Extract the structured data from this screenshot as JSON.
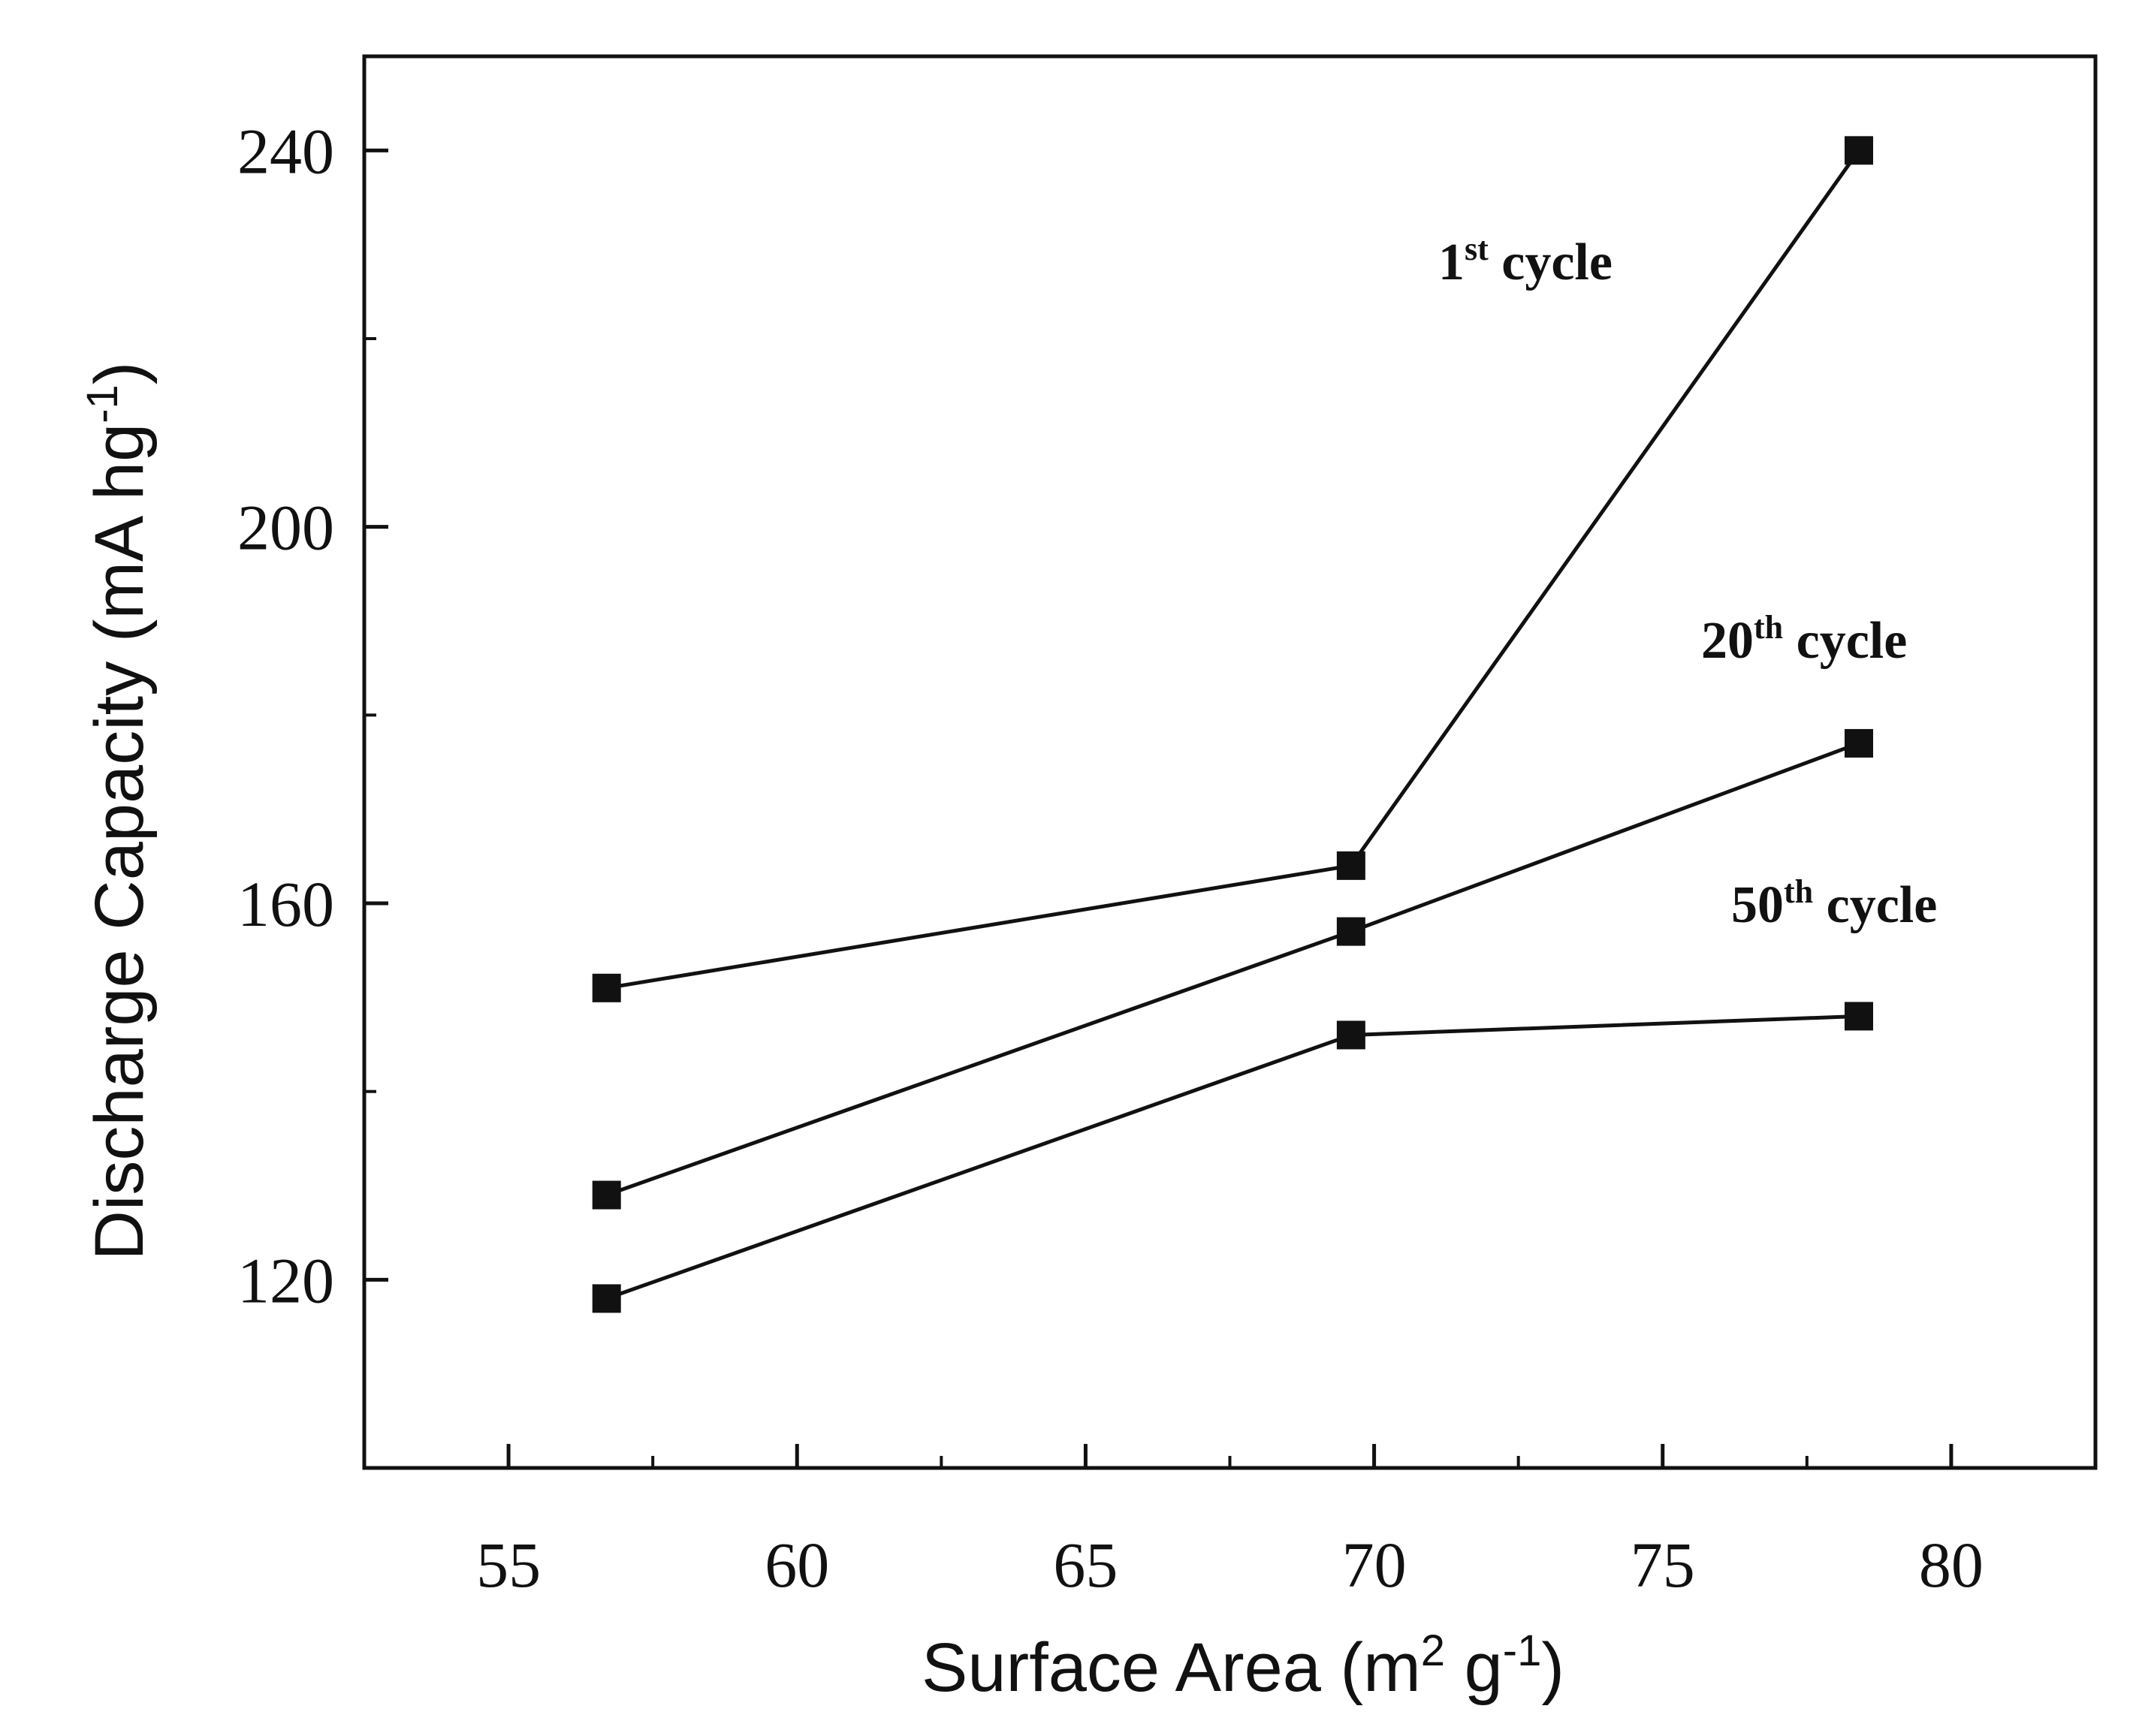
{
  "chart_data": {
    "type": "line",
    "title": "",
    "xlabel": {
      "main": "Surface Area (m",
      "sup1": "2",
      "mid": " g",
      "sup2": "-1",
      "end": ")"
    },
    "ylabel": {
      "main": "Discharge Capacity (mA hg",
      "sup": "-1",
      "end": ")"
    },
    "xlim": [
      52.5,
      82.5
    ],
    "ylim": [
      100,
      250
    ],
    "x_ticks": [
      55,
      60,
      65,
      70,
      75,
      80
    ],
    "y_ticks": [
      120,
      160,
      200,
      240
    ],
    "x_minor_ticks": [
      57.5,
      62.5,
      67.5,
      72.5,
      77.5
    ],
    "y_minor_ticks": [
      140,
      180,
      220
    ],
    "grid": false,
    "series": [
      {
        "name": "1st cycle",
        "x": [
          56.7,
          69.6,
          78.4
        ],
        "y": [
          151,
          164,
          240
        ]
      },
      {
        "name": "20th cycle",
        "x": [
          56.7,
          69.6,
          78.4
        ],
        "y": [
          129,
          157,
          177
        ]
      },
      {
        "name": "50th cycle",
        "x": [
          56.7,
          69.6,
          78.4
        ],
        "y": [
          118,
          146,
          148
        ]
      }
    ],
    "annotations": [
      {
        "base": "1",
        "sup": "st",
        "text": " cycle",
        "series": "1st cycle"
      },
      {
        "base": "20",
        "sup": "th",
        "text": " cycle",
        "series": "20th cycle"
      },
      {
        "base": "50",
        "sup": "th",
        "text": " cycle",
        "series": "50th cycle"
      }
    ],
    "colors": {
      "line": "#111111",
      "marker": "#111111",
      "axis": "#111111"
    }
  }
}
